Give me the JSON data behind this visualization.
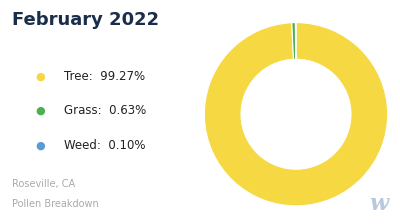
{
  "title": "February 2022",
  "subtitle_line1": "Roseville, CA",
  "subtitle_line2": "Pollen Breakdown",
  "slices": [
    99.27,
    0.63,
    0.1
  ],
  "labels": [
    "Tree",
    "Grass",
    "Weed"
  ],
  "percentages": [
    "99.27%",
    "0.63%",
    "0.10%"
  ],
  "colors": [
    "#F5D842",
    "#4CAF50",
    "#5B9BD5"
  ],
  "background_color": "#ffffff",
  "title_color": "#1a2e4a",
  "legend_text_color": "#222222",
  "subtitle_color": "#aaaaaa",
  "watermark_color": "#b8c8de"
}
